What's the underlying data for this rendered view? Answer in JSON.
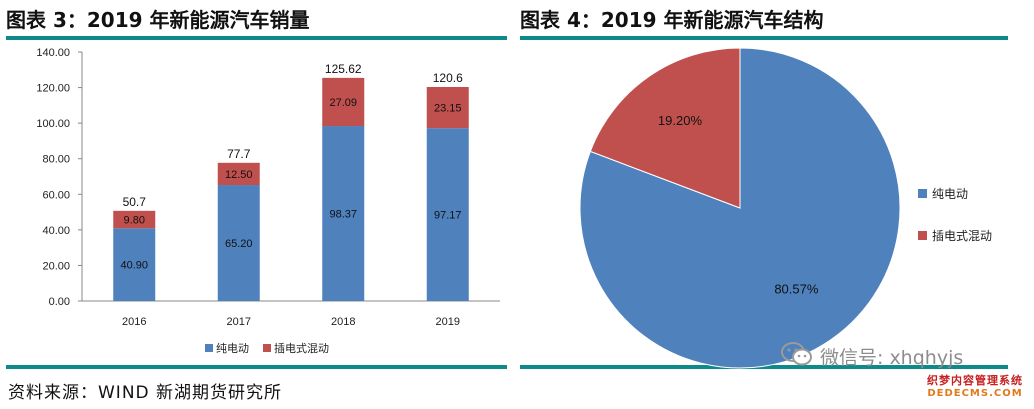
{
  "titles": {
    "left": "图表 3：2019 年新能源汽车销量",
    "right": "图表 4：2019 年新能源汽车结构"
  },
  "source": "资料来源：WIND 新湖期货研究所",
  "watermark": {
    "text": "微信号: xhqhyjs",
    "icon": "wechat-icon",
    "stamp_top": "织梦内容管理系统",
    "stamp_bottom": "DEDECMS.COM"
  },
  "colors": {
    "bev": "#4f81bd",
    "phev": "#c0504d",
    "rule": "#0f8a8a"
  },
  "chart_data": [
    {
      "type": "bar",
      "stacked": true,
      "categories": [
        "2016",
        "2017",
        "2018",
        "2019"
      ],
      "series": [
        {
          "name": "纯电动",
          "values": [
            40.9,
            65.2,
            98.37,
            97.17
          ],
          "labels": [
            "40.90",
            "65.20",
            "98.37",
            "97.17"
          ]
        },
        {
          "name": "插电式混动",
          "values": [
            9.8,
            12.5,
            27.09,
            23.15
          ],
          "labels": [
            "9.80",
            "12.50",
            "27.09",
            "23.15"
          ]
        }
      ],
      "totals": [
        "50.7",
        "77.7",
        "125.62",
        "120.6"
      ],
      "ylim": [
        0,
        140
      ],
      "yticks": [
        "0.00",
        "20.00",
        "40.00",
        "60.00",
        "80.00",
        "100.00",
        "120.00",
        "140.00"
      ],
      "legend": "bottom",
      "grid": false
    },
    {
      "type": "pie",
      "slices": [
        {
          "name": "纯电动",
          "value": 80.57,
          "label": "80.57%"
        },
        {
          "name": "插电式混动",
          "value": 19.2,
          "label": "19.20%"
        }
      ],
      "legend": "right"
    }
  ]
}
